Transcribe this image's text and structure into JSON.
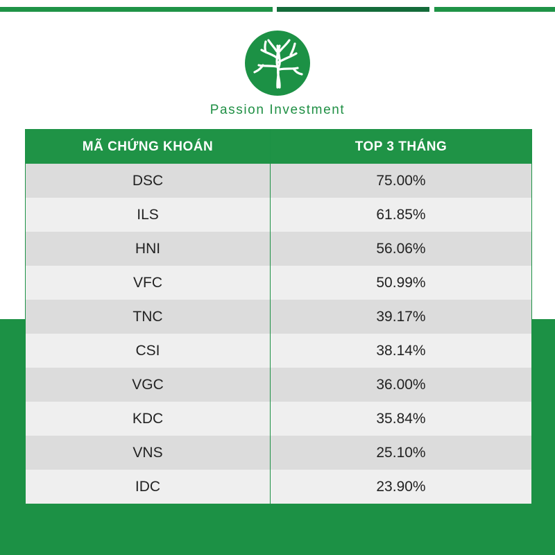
{
  "brand": {
    "name": "Passion Investment",
    "logo_icon": "tree-logo-icon",
    "primary_color": "#1f9346",
    "dark_color": "#146b3a"
  },
  "table": {
    "headers": [
      "MÃ CHỨNG KHOÁN",
      "TOP 3 THÁNG"
    ],
    "rows": [
      {
        "code": "DSC",
        "value": "75.00%"
      },
      {
        "code": "ILS",
        "value": "61.85%"
      },
      {
        "code": "HNI",
        "value": "56.06%"
      },
      {
        "code": "VFC",
        "value": "50.99%"
      },
      {
        "code": "TNC",
        "value": "39.17%"
      },
      {
        "code": "CSI",
        "value": "38.14%"
      },
      {
        "code": "VGC",
        "value": "36.00%"
      },
      {
        "code": "KDC",
        "value": "35.84%"
      },
      {
        "code": "VNS",
        "value": "25.10%"
      },
      {
        "code": "IDC",
        "value": "23.90%"
      }
    ]
  }
}
